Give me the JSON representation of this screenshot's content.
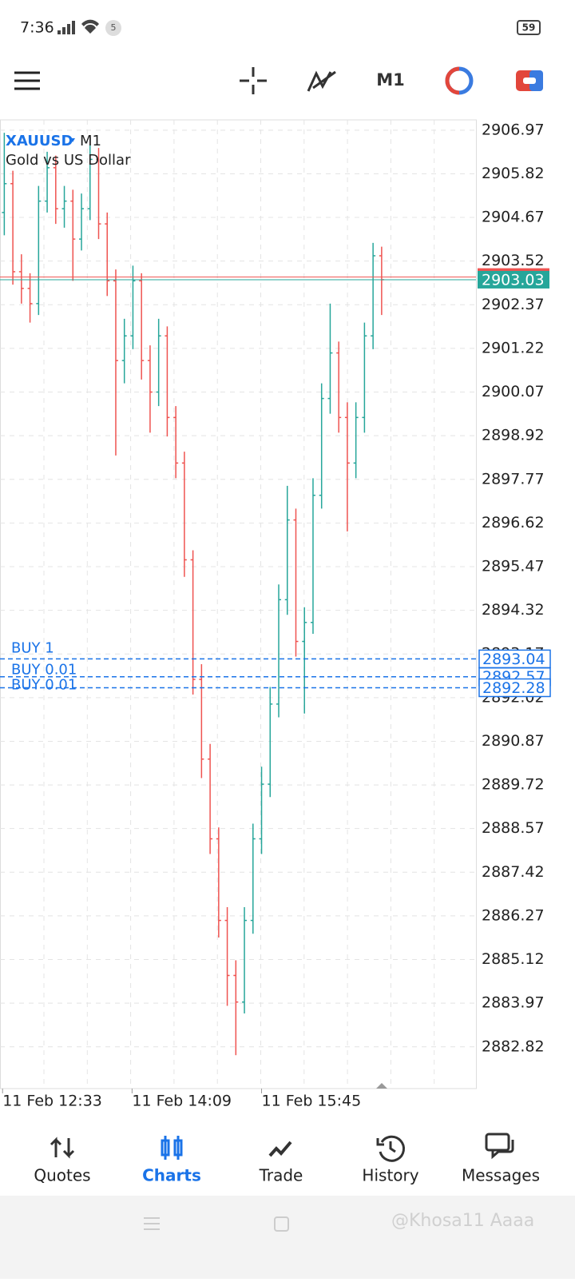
{
  "status_bar": {
    "time": "7:36",
    "notification_count": "5",
    "battery": "59"
  },
  "toolbar": {
    "timeframe": "M1"
  },
  "chart_data": {
    "type": "ohlc",
    "symbol": "XAUUSD",
    "timeframe": "M1",
    "description": "Gold vs US Dollar",
    "open": [
      2904.8,
      2905.56,
      2903.24,
      2902.8,
      2902.4,
      2905.1,
      2905.98,
      2904.9,
      2905.1,
      2904.1,
      2904.9,
      2906.2,
      2904.5,
      2903.0,
      2900.9,
      2901.55,
      2903.0,
      2900.9,
      2900.07,
      2901.55,
      2899.4,
      2898.2,
      2895.65,
      2892.5,
      2890.4,
      2888.3,
      2886.15,
      2884.7,
      2884.0,
      2886.15,
      2888.3,
      2889.74,
      2891.85,
      2894.6,
      2896.7,
      2893.5,
      2894.0,
      2897.35,
      2899.9,
      2901.1,
      2899.4,
      2898.2,
      2899.4,
      2901.55,
      2903.66
    ],
    "high": [
      2906.9,
      2905.9,
      2903.7,
      2903.2,
      2905.5,
      2906.4,
      2906.3,
      2905.5,
      2905.4,
      2905.3,
      2906.6,
      2906.5,
      2904.8,
      2903.3,
      2902.0,
      2903.4,
      2903.2,
      2901.3,
      2902.0,
      2901.8,
      2899.7,
      2898.5,
      2895.9,
      2892.9,
      2890.8,
      2888.6,
      2886.5,
      2885.1,
      2886.5,
      2888.7,
      2890.2,
      2892.3,
      2895.0,
      2897.6,
      2897.0,
      2894.4,
      2897.8,
      2900.3,
      2902.4,
      2901.4,
      2899.8,
      2899.8,
      2901.9,
      2904.0,
      2903.9
    ],
    "low": [
      2904.2,
      2902.9,
      2902.4,
      2901.9,
      2902.1,
      2904.8,
      2904.5,
      2904.4,
      2903.0,
      2903.8,
      2904.6,
      2904.1,
      2902.6,
      2898.4,
      2900.3,
      2901.2,
      2900.4,
      2899.0,
      2899.7,
      2898.9,
      2897.8,
      2895.2,
      2892.1,
      2889.9,
      2887.9,
      2885.7,
      2883.9,
      2882.6,
      2883.7,
      2885.8,
      2887.9,
      2889.4,
      2891.5,
      2894.2,
      2893.1,
      2891.6,
      2893.7,
      2897.0,
      2899.5,
      2899.0,
      2896.4,
      2897.8,
      2899.0,
      2901.2,
      2902.1
    ],
    "close": [
      2905.56,
      2903.24,
      2902.8,
      2902.4,
      2905.1,
      2905.98,
      2904.9,
      2905.1,
      2904.1,
      2904.9,
      2906.2,
      2904.5,
      2903.0,
      2900.9,
      2901.55,
      2903.0,
      2900.9,
      2900.07,
      2901.55,
      2899.4,
      2898.2,
      2895.65,
      2892.5,
      2890.4,
      2888.3,
      2886.15,
      2884.7,
      2884.0,
      2886.15,
      2888.3,
      2889.74,
      2891.85,
      2894.6,
      2896.7,
      2893.5,
      2894.0,
      2897.35,
      2899.9,
      2901.1,
      2899.4,
      2898.2,
      2899.4,
      2901.55,
      2903.66,
      2903.03
    ],
    "up_color": "#26a69a",
    "down_color": "#ef5350",
    "xlim": [
      -0.5,
      55
    ],
    "xticks": [
      {
        "value": -0.2,
        "label": "11 Feb 12:33"
      },
      {
        "value": 14.9,
        "label": "11 Feb 14:09"
      },
      {
        "value": 30,
        "label": "11 Feb 15:45"
      }
    ],
    "ylim": [
      2881.72,
      2907.24
    ],
    "yticks": [
      2906.97,
      2905.82,
      2904.67,
      2903.52,
      2902.37,
      2901.22,
      2900.07,
      2898.92,
      2897.77,
      2896.62,
      2895.47,
      2894.32,
      2893.17,
      2892.02,
      2890.87,
      2889.72,
      2888.57,
      2887.42,
      2886.27,
      2885.12,
      2883.97,
      2882.82
    ],
    "grid": true,
    "price_lines": {
      "values": [
        2903.1,
        2903.03
      ],
      "value_labels": [
        "2903.10",
        "2903.03"
      ],
      "colors": [
        "#ef5350",
        "#26a69a"
      ]
    },
    "orders": {
      "names": [
        "BUY 1",
        "BUY 0.01",
        "BUY 0.01"
      ],
      "values": [
        2893.04,
        2892.57,
        2892.28
      ],
      "color": "#1a73e8"
    }
  },
  "nav": {
    "items": [
      "Quotes",
      "Charts",
      "Trade",
      "History",
      "Messages"
    ],
    "active": 1
  },
  "watermark": "@Khosa11 Aaaa"
}
